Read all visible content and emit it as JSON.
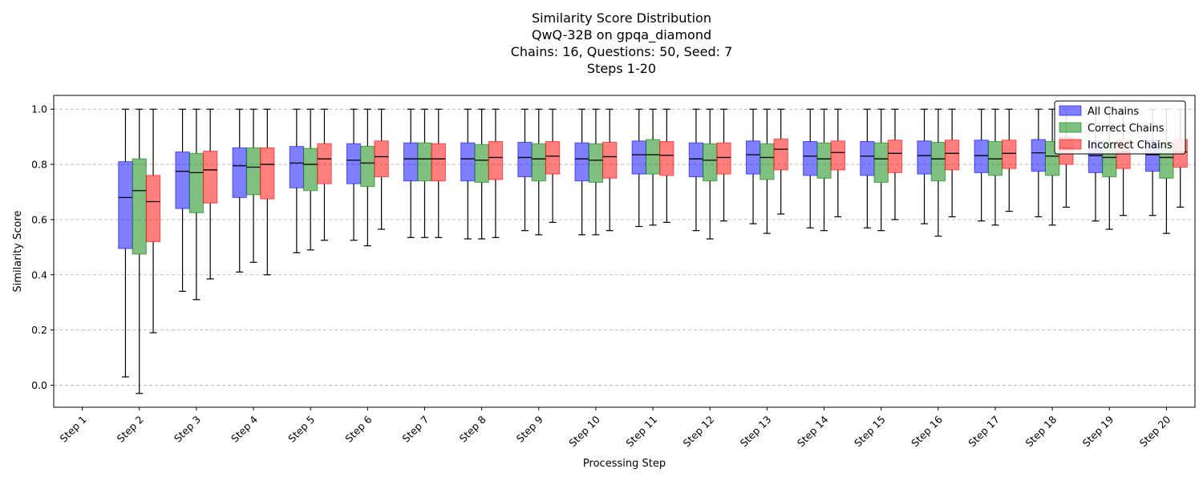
{
  "chart_data": {
    "type": "boxplot",
    "title_lines": [
      "Similarity Score Distribution",
      "QwQ-32B on gpqa_diamond",
      "Chains: 16, Questions: 50, Seed: 7",
      "Steps 1-20"
    ],
    "xlabel": "Processing Step",
    "ylabel": "Similarity Score",
    "ylim": [
      -0.08,
      1.05
    ],
    "yticks": [
      "0.0",
      "0.2",
      "0.4",
      "0.6",
      "0.8",
      "1.0"
    ],
    "ytick_values": [
      0.0,
      0.2,
      0.4,
      0.6,
      0.8,
      1.0
    ],
    "grid": "y-dashed",
    "legend_position": "top-right",
    "categories": [
      "Step 1",
      "Step 2",
      "Step 3",
      "Step 4",
      "Step 5",
      "Step 6",
      "Step 7",
      "Step 8",
      "Step 9",
      "Step 10",
      "Step 11",
      "Step 12",
      "Step 13",
      "Step 14",
      "Step 15",
      "Step 16",
      "Step 17",
      "Step 18",
      "Step 19",
      "Step 20"
    ],
    "series": [
      {
        "name": "All Chains",
        "color": "#0000ff",
        "boxes": [
          null,
          {
            "whislo": 0.03,
            "q1": 0.495,
            "med": 0.68,
            "q3": 0.81,
            "whishi": 1.0
          },
          {
            "whislo": 0.34,
            "q1": 0.64,
            "med": 0.775,
            "q3": 0.845,
            "whishi": 1.0
          },
          {
            "whislo": 0.41,
            "q1": 0.68,
            "med": 0.795,
            "q3": 0.86,
            "whishi": 1.0
          },
          {
            "whislo": 0.48,
            "q1": 0.715,
            "med": 0.805,
            "q3": 0.865,
            "whishi": 1.0
          },
          {
            "whislo": 0.525,
            "q1": 0.73,
            "med": 0.815,
            "q3": 0.875,
            "whishi": 1.0
          },
          {
            "whislo": 0.535,
            "q1": 0.74,
            "med": 0.82,
            "q3": 0.878,
            "whishi": 1.0
          },
          {
            "whislo": 0.53,
            "q1": 0.74,
            "med": 0.82,
            "q3": 0.878,
            "whishi": 1.0
          },
          {
            "whislo": 0.56,
            "q1": 0.755,
            "med": 0.825,
            "q3": 0.88,
            "whishi": 1.0
          },
          {
            "whislo": 0.545,
            "q1": 0.74,
            "med": 0.82,
            "q3": 0.878,
            "whishi": 1.0
          },
          {
            "whislo": 0.575,
            "q1": 0.765,
            "med": 0.835,
            "q3": 0.885,
            "whishi": 1.0
          },
          {
            "whislo": 0.56,
            "q1": 0.755,
            "med": 0.82,
            "q3": 0.878,
            "whishi": 1.0
          },
          {
            "whislo": 0.585,
            "q1": 0.765,
            "med": 0.835,
            "q3": 0.885,
            "whishi": 1.0
          },
          {
            "whislo": 0.57,
            "q1": 0.76,
            "med": 0.83,
            "q3": 0.883,
            "whishi": 1.0
          },
          {
            "whislo": 0.57,
            "q1": 0.76,
            "med": 0.83,
            "q3": 0.883,
            "whishi": 1.0
          },
          {
            "whislo": 0.585,
            "q1": 0.765,
            "med": 0.832,
            "q3": 0.885,
            "whishi": 1.0
          },
          {
            "whislo": 0.595,
            "q1": 0.77,
            "med": 0.832,
            "q3": 0.888,
            "whishi": 1.0
          },
          {
            "whislo": 0.61,
            "q1": 0.775,
            "med": 0.842,
            "q3": 0.89,
            "whishi": 1.0
          },
          {
            "whislo": 0.595,
            "q1": 0.77,
            "med": 0.832,
            "q3": 0.885,
            "whishi": 1.0
          },
          {
            "whislo": 0.615,
            "q1": 0.775,
            "med": 0.835,
            "q3": 0.886,
            "whishi": 1.0
          }
        ]
      },
      {
        "name": "Correct Chains",
        "color": "#008000",
        "boxes": [
          null,
          {
            "whislo": -0.03,
            "q1": 0.475,
            "med": 0.705,
            "q3": 0.82,
            "whishi": 1.0
          },
          {
            "whislo": 0.31,
            "q1": 0.625,
            "med": 0.77,
            "q3": 0.84,
            "whishi": 1.0
          },
          {
            "whislo": 0.445,
            "q1": 0.69,
            "med": 0.79,
            "q3": 0.86,
            "whishi": 1.0
          },
          {
            "whislo": 0.49,
            "q1": 0.705,
            "med": 0.8,
            "q3": 0.858,
            "whishi": 1.0
          },
          {
            "whislo": 0.505,
            "q1": 0.72,
            "med": 0.805,
            "q3": 0.866,
            "whishi": 1.0
          },
          {
            "whislo": 0.535,
            "q1": 0.74,
            "med": 0.82,
            "q3": 0.878,
            "whishi": 1.0
          },
          {
            "whislo": 0.53,
            "q1": 0.735,
            "med": 0.815,
            "q3": 0.872,
            "whishi": 1.0
          },
          {
            "whislo": 0.545,
            "q1": 0.74,
            "med": 0.82,
            "q3": 0.875,
            "whishi": 1.0
          },
          {
            "whislo": 0.545,
            "q1": 0.735,
            "med": 0.815,
            "q3": 0.875,
            "whishi": 1.0
          },
          {
            "whislo": 0.58,
            "q1": 0.765,
            "med": 0.835,
            "q3": 0.89,
            "whishi": 1.0
          },
          {
            "whislo": 0.53,
            "q1": 0.74,
            "med": 0.815,
            "q3": 0.875,
            "whishi": 1.0
          },
          {
            "whislo": 0.55,
            "q1": 0.745,
            "med": 0.825,
            "q3": 0.875,
            "whishi": 1.0
          },
          {
            "whislo": 0.56,
            "q1": 0.75,
            "med": 0.82,
            "q3": 0.878,
            "whishi": 1.0
          },
          {
            "whislo": 0.56,
            "q1": 0.735,
            "med": 0.82,
            "q3": 0.878,
            "whishi": 1.0
          },
          {
            "whislo": 0.54,
            "q1": 0.74,
            "med": 0.82,
            "q3": 0.88,
            "whishi": 1.0
          },
          {
            "whislo": 0.58,
            "q1": 0.76,
            "med": 0.82,
            "q3": 0.883,
            "whishi": 1.0
          },
          {
            "whislo": 0.58,
            "q1": 0.76,
            "med": 0.83,
            "q3": 0.883,
            "whishi": 1.0
          },
          {
            "whislo": 0.565,
            "q1": 0.755,
            "med": 0.825,
            "q3": 0.88,
            "whishi": 1.0
          },
          {
            "whislo": 0.55,
            "q1": 0.75,
            "med": 0.825,
            "q3": 0.878,
            "whishi": 1.0
          }
        ]
      },
      {
        "name": "Incorrect Chains",
        "color": "#ff0000",
        "boxes": [
          null,
          {
            "whislo": 0.19,
            "q1": 0.52,
            "med": 0.665,
            "q3": 0.76,
            "whishi": 1.0
          },
          {
            "whislo": 0.385,
            "q1": 0.66,
            "med": 0.78,
            "q3": 0.848,
            "whishi": 1.0
          },
          {
            "whislo": 0.4,
            "q1": 0.675,
            "med": 0.8,
            "q3": 0.86,
            "whishi": 1.0
          },
          {
            "whislo": 0.525,
            "q1": 0.73,
            "med": 0.82,
            "q3": 0.875,
            "whishi": 1.0
          },
          {
            "whislo": 0.565,
            "q1": 0.755,
            "med": 0.828,
            "q3": 0.885,
            "whishi": 1.0
          },
          {
            "whislo": 0.535,
            "q1": 0.74,
            "med": 0.82,
            "q3": 0.875,
            "whishi": 1.0
          },
          {
            "whislo": 0.535,
            "q1": 0.745,
            "med": 0.825,
            "q3": 0.883,
            "whishi": 1.0
          },
          {
            "whislo": 0.59,
            "q1": 0.765,
            "med": 0.83,
            "q3": 0.883,
            "whishi": 1.0
          },
          {
            "whislo": 0.56,
            "q1": 0.75,
            "med": 0.828,
            "q3": 0.88,
            "whishi": 1.0
          },
          {
            "whislo": 0.59,
            "q1": 0.76,
            "med": 0.833,
            "q3": 0.883,
            "whishi": 1.0
          },
          {
            "whislo": 0.595,
            "q1": 0.765,
            "med": 0.825,
            "q3": 0.878,
            "whishi": 1.0
          },
          {
            "whislo": 0.62,
            "q1": 0.78,
            "med": 0.855,
            "q3": 0.892,
            "whishi": 1.0
          },
          {
            "whislo": 0.61,
            "q1": 0.78,
            "med": 0.843,
            "q3": 0.885,
            "whishi": 1.0
          },
          {
            "whislo": 0.6,
            "q1": 0.77,
            "med": 0.84,
            "q3": 0.888,
            "whishi": 1.0
          },
          {
            "whislo": 0.61,
            "q1": 0.78,
            "med": 0.84,
            "q3": 0.888,
            "whishi": 1.0
          },
          {
            "whislo": 0.63,
            "q1": 0.785,
            "med": 0.84,
            "q3": 0.888,
            "whishi": 1.0
          },
          {
            "whislo": 0.645,
            "q1": 0.8,
            "med": 0.862,
            "q3": 0.9,
            "whishi": 1.0
          },
          {
            "whislo": 0.615,
            "q1": 0.785,
            "med": 0.845,
            "q3": 0.89,
            "whishi": 1.0
          },
          {
            "whislo": 0.645,
            "q1": 0.79,
            "med": 0.845,
            "q3": 0.89,
            "whishi": 1.0
          }
        ]
      }
    ]
  }
}
